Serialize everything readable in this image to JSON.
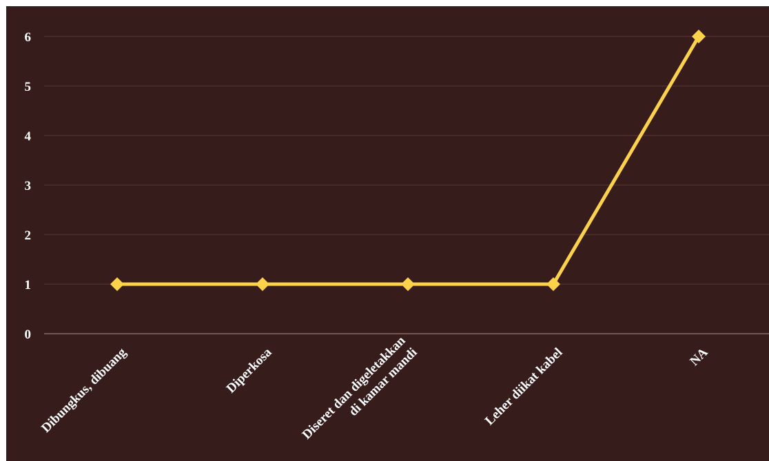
{
  "chart_data": {
    "type": "line",
    "title": "",
    "xlabel": "",
    "ylabel": "",
    "categories": [
      [
        "Dibungkus, dibuang"
      ],
      [
        "Diperkosa"
      ],
      [
        "Diseret dan digeletakkan",
        "di kamar mandi"
      ],
      [
        "Leher diikat kabel"
      ],
      [
        "NA"
      ]
    ],
    "series": [
      {
        "values": [
          1,
          1,
          1,
          1,
          6
        ]
      }
    ],
    "ylim": [
      0,
      6
    ],
    "yticks": [
      0,
      1,
      2,
      3,
      4,
      5,
      6
    ],
    "grid": true,
    "legend": "none"
  },
  "colors": {
    "background": "#361c1a",
    "grid": "#5a3a36",
    "axis": "#8a6a64",
    "line": "#fdd24b",
    "text": "#ffffff"
  }
}
